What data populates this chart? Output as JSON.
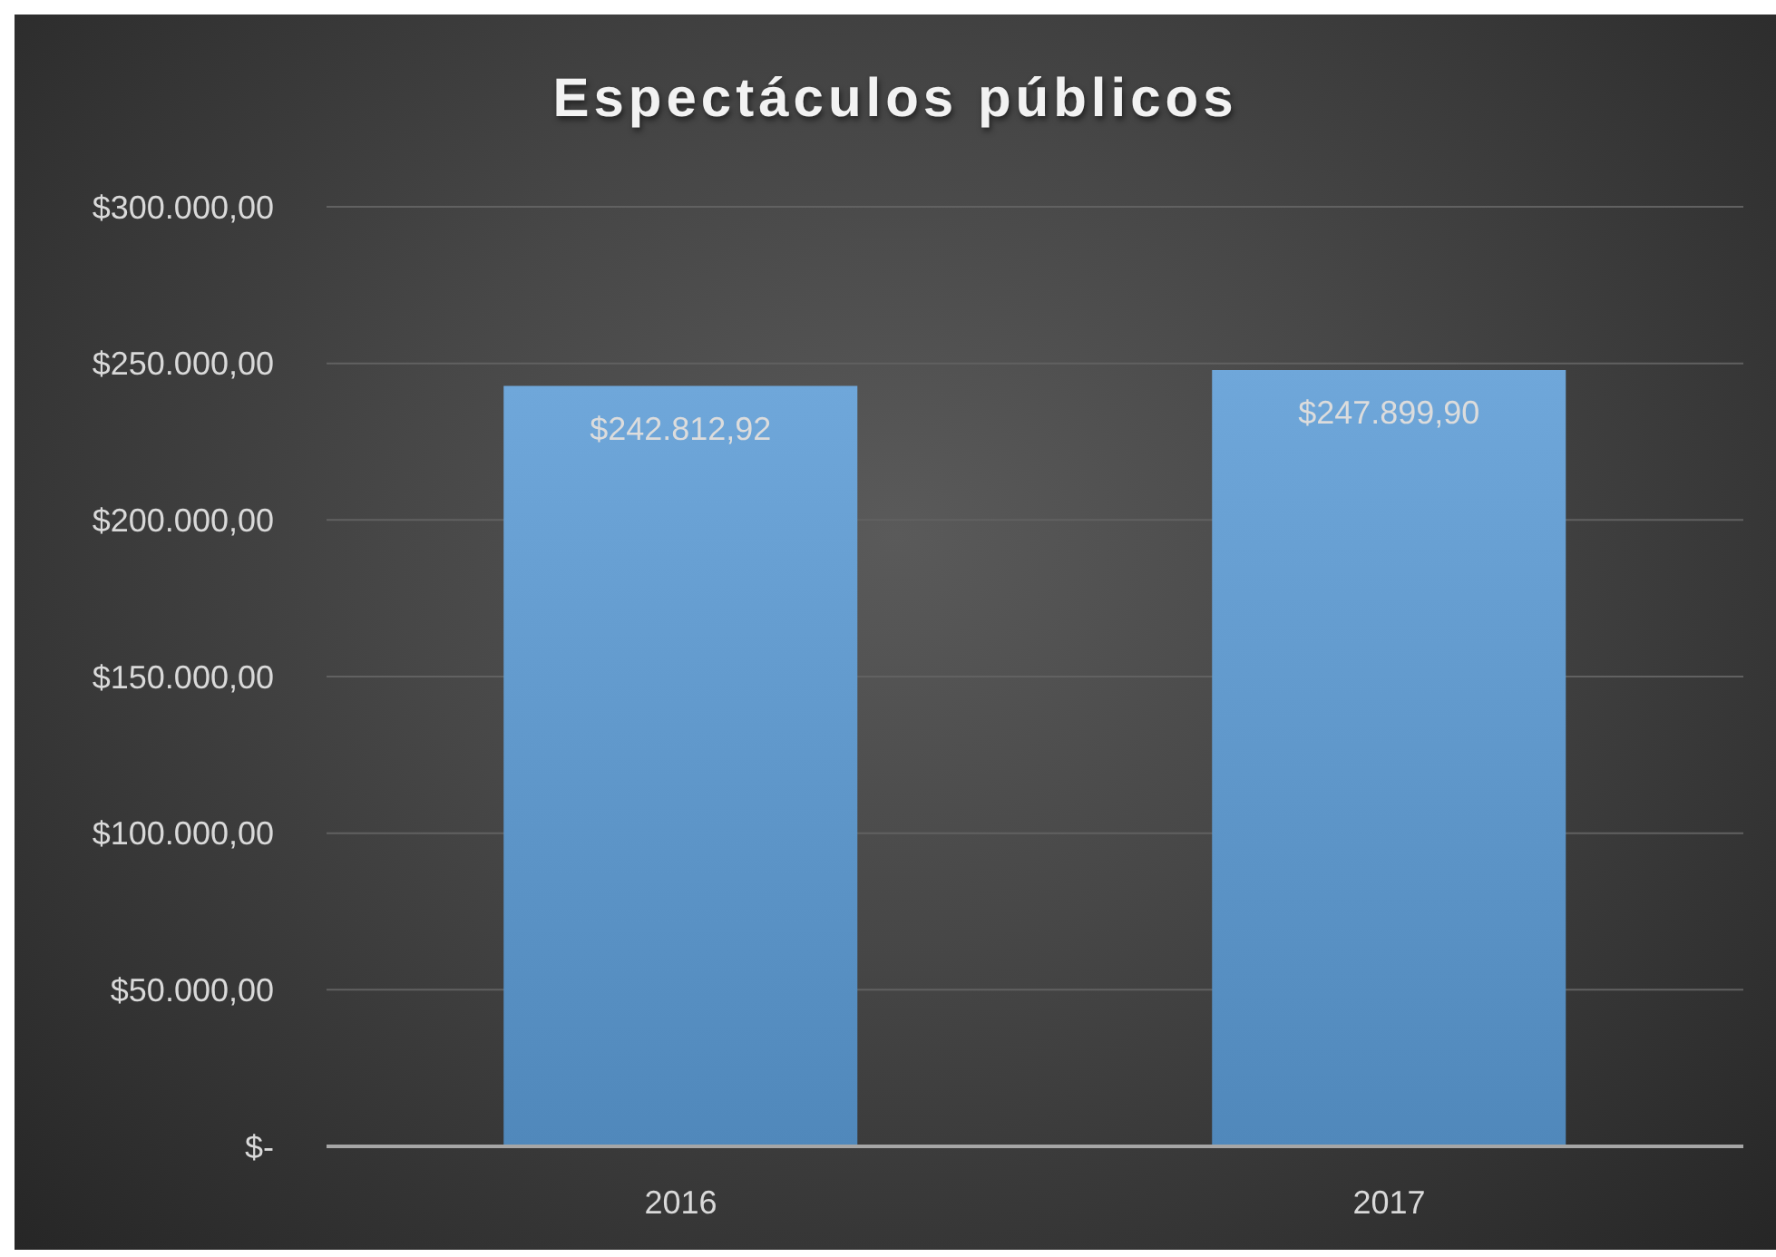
{
  "chart_data": {
    "type": "bar",
    "title": "Espectáculos públicos",
    "categories": [
      "2016",
      "2017"
    ],
    "values": [
      242812.92,
      247899.9
    ],
    "color": "#5b9bd5",
    "value_labels": [
      "$242.812,92",
      "$247.899,90"
    ],
    "ylim": [
      0,
      300000
    ],
    "yticks": [
      {
        "value": 0,
        "label": "$-"
      },
      {
        "value": 50000,
        "label": "$50.000,00"
      },
      {
        "value": 100000,
        "label": "$100.000,00"
      },
      {
        "value": 150000,
        "label": "$150.000,00"
      },
      {
        "value": 200000,
        "label": "$200.000,00"
      },
      {
        "value": 250000,
        "label": "$250.000,00"
      },
      {
        "value": 300000,
        "label": "$300.000,00"
      }
    ],
    "grid": "y"
  }
}
